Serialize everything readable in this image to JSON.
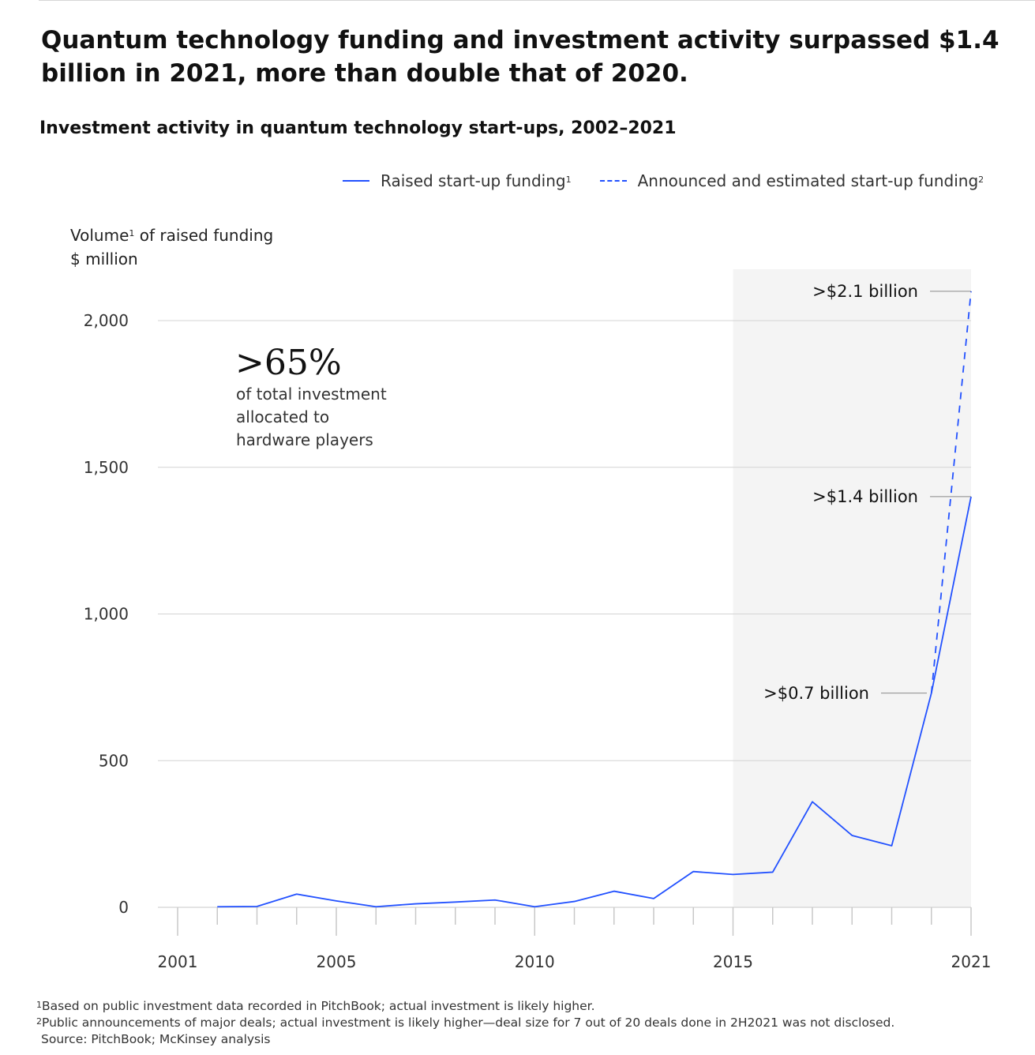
{
  "title": "Quantum technology funding and investment activity surpassed $1.4 billion in 2021, more than double that of 2020.",
  "subtitle": "Investment activity in quantum technology start-ups, 2002–2021",
  "legend": {
    "raised": {
      "label": "Raised start-up funding",
      "sup": "1"
    },
    "announced": {
      "label": "Announced and estimated start-up funding",
      "sup": "2"
    }
  },
  "ylabel": {
    "line1_pre": "Volume",
    "line1_sup": "1",
    "line1_post": " of raised funding",
    "line2": "$ million"
  },
  "callout": {
    "big": ">65%",
    "lines": [
      "of total investment",
      "allocated to",
      "hardware players"
    ]
  },
  "annotations": [
    ">$2.1 billion",
    ">$1.4 billion",
    ">$0.7 billion"
  ],
  "footnotes": [
    {
      "sup": "1",
      "text": "Based on public investment data recorded in PitchBook; actual investment is likely higher."
    },
    {
      "sup": "2",
      "text": "Public announcements of major deals; actual investment is likely higher—deal size for 7 out of 20 deals done in 2H2021 was not disclosed."
    },
    {
      "sup": "",
      "text": "Source: PitchBook; McKinsey analysis"
    }
  ],
  "colors": {
    "line": "#2251ff",
    "grid": "#d4d4d4",
    "shade": "#f4f4f4"
  },
  "chart_data": {
    "type": "line",
    "x_ticks": [
      2001,
      2005,
      2010,
      2015,
      2021
    ],
    "x_tick_labels": [
      "2001",
      "2005",
      "2010",
      "2015",
      "2021"
    ],
    "xlim": [
      2001,
      2021
    ],
    "y_ticks": [
      0,
      500,
      1000,
      1500,
      2000
    ],
    "y_tick_labels": [
      "0",
      "500",
      "1,000",
      "1,500",
      "2,000"
    ],
    "ylim": [
      0,
      2100
    ],
    "shaded_region": [
      2015,
      2021
    ],
    "grid": "horizontal",
    "legend_position": "top-right",
    "series": [
      {
        "name": "Raised start-up funding",
        "style": "solid",
        "x": [
          2002,
          2003,
          2004,
          2005,
          2006,
          2007,
          2008,
          2009,
          2010,
          2011,
          2012,
          2013,
          2014,
          2015,
          2016,
          2017,
          2018,
          2019,
          2020,
          2021
        ],
        "y": [
          2,
          3,
          45,
          22,
          2,
          12,
          18,
          25,
          2,
          20,
          55,
          30,
          122,
          112,
          120,
          360,
          245,
          210,
          730,
          1400
        ]
      },
      {
        "name": "Announced and estimated start-up funding",
        "style": "dashed",
        "x": [
          2020,
          2021
        ],
        "y": [
          730,
          2100
        ]
      }
    ]
  }
}
